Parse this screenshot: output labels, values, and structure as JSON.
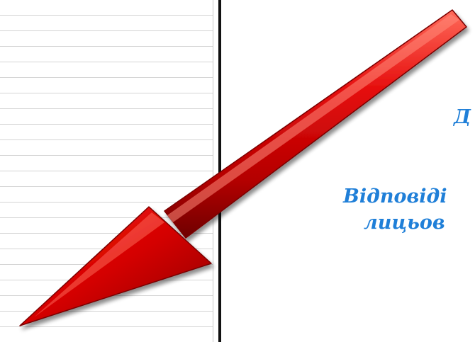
{
  "text": {
    "line1": "Д",
    "line2": "Відповіді",
    "line3": "лицьов"
  },
  "colors": {
    "text_blue": "#1f7fd8",
    "arrow_red": "#cc0000",
    "divider": "#111111",
    "ruled_lines": "#d4d4d4"
  },
  "icons": {
    "arrow": "red-arrow-icon"
  }
}
